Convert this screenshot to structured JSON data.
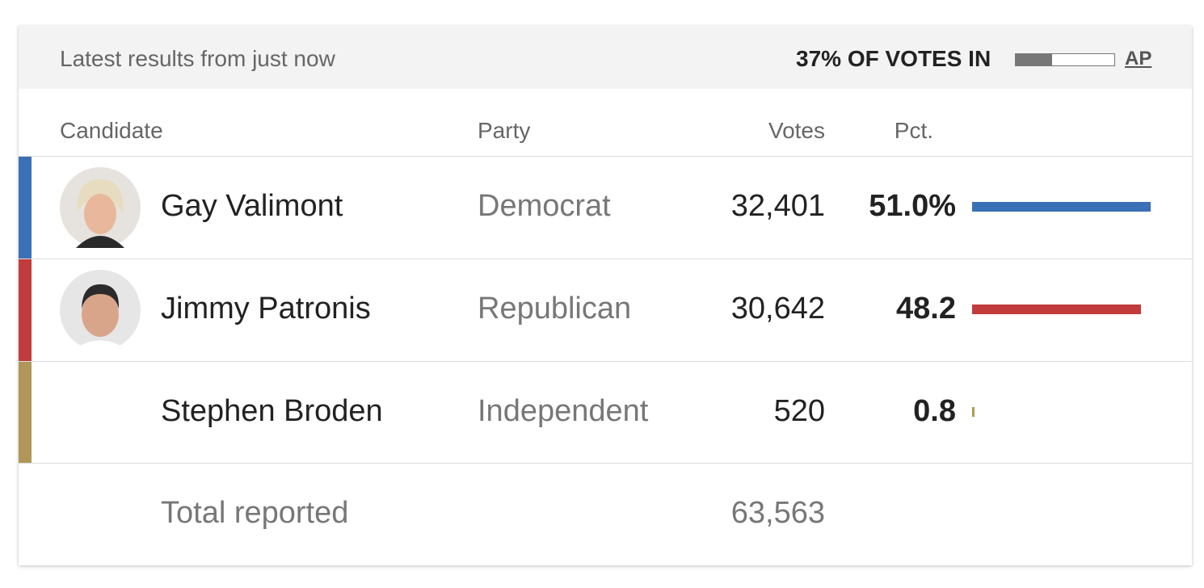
{
  "header": {
    "updated": "Latest results from just now",
    "reporting": "37% OF VOTES IN",
    "reporting_pct": 37,
    "source": "AP"
  },
  "table": {
    "columns": [
      "Candidate",
      "Party",
      "Votes",
      "Pct."
    ],
    "rows": [
      {
        "name": "Gay Valimont",
        "party": "Democrat",
        "votes": "32,401",
        "pct": 51.0,
        "pct_label": "51.0%",
        "color": "#3a70b5"
      },
      {
        "name": "Jimmy Patronis",
        "party": "Republican",
        "votes": "30,642",
        "pct": 48.2,
        "color": "#c23b3c"
      },
      {
        "name": "Stephen Broden",
        "party": "Independent",
        "votes": "520",
        "pct": 0.8,
        "color": "#b0965a"
      }
    ],
    "total_label": "Total reported",
    "total_votes": "63,563"
  }
}
